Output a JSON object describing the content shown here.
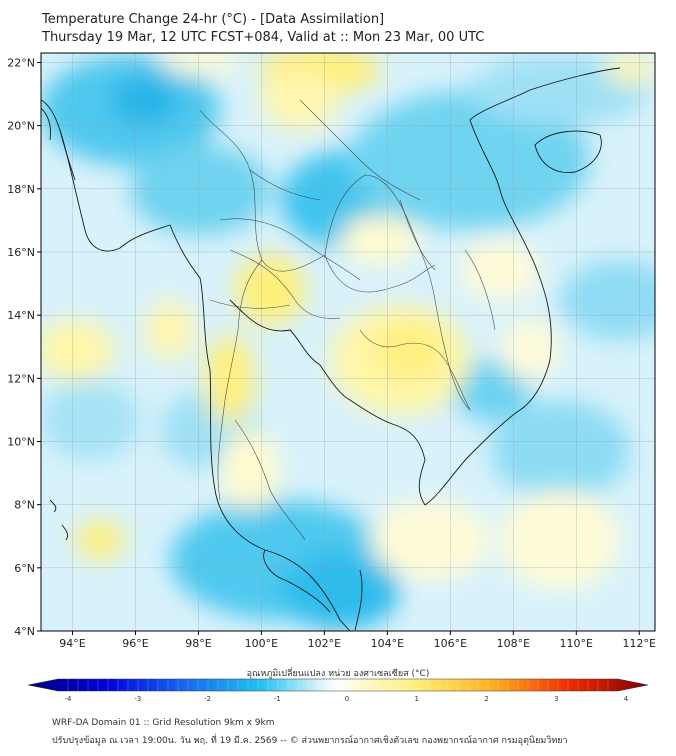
{
  "header": {
    "title_line1": "Temperature Change 24-hr (°C) - [Data Assimilation]",
    "title_line2": "Thursday 19 Mar, 12 UTC FCST+084, Valid at :: Mon 23 Mar, 00 UTC"
  },
  "map": {
    "lat_labels": [
      "22°N",
      "20°N",
      "18°N",
      "16°N",
      "14°N",
      "12°N",
      "10°N",
      "8°N",
      "6°N",
      "4°N"
    ],
    "lon_labels": [
      "94°E",
      "96°E",
      "98°E",
      "100°E",
      "102°E",
      "104°E",
      "106°E",
      "108°E",
      "110°E",
      "112°E"
    ],
    "lat_range": [
      4,
      22.3
    ],
    "lon_range": [
      93,
      112.5
    ],
    "gridlines": true
  },
  "colorbar": {
    "label": "อุณหภูมิเปลี่ยนแปลง หน่วย องศาเซลเซียส (°C)",
    "ticks": [
      "-4",
      "-3",
      "-2",
      "-1",
      "0",
      "1",
      "2",
      "3",
      "4"
    ],
    "range": [
      -4,
      4
    ],
    "colors": {
      "min": "#00007a",
      "cold": "#1ec8f0",
      "neutral": "#ffffff",
      "warm": "#fff27a",
      "max": "#7a0000"
    }
  },
  "footer": {
    "line1": "WRF-DA Domain 01 :: Grid Resolution 9km x 9km",
    "line2": "ปรับปรุงข้อมูล ณ เวลา 19:00น. วัน พฤ. ที่ 19 มี.ค. 2569 -- © ส่วนพยากรณ์อากาศเชิงตัวเลข กองพยากรณ์อากาศ กรมอุตุนิยมวิทยา"
  }
}
